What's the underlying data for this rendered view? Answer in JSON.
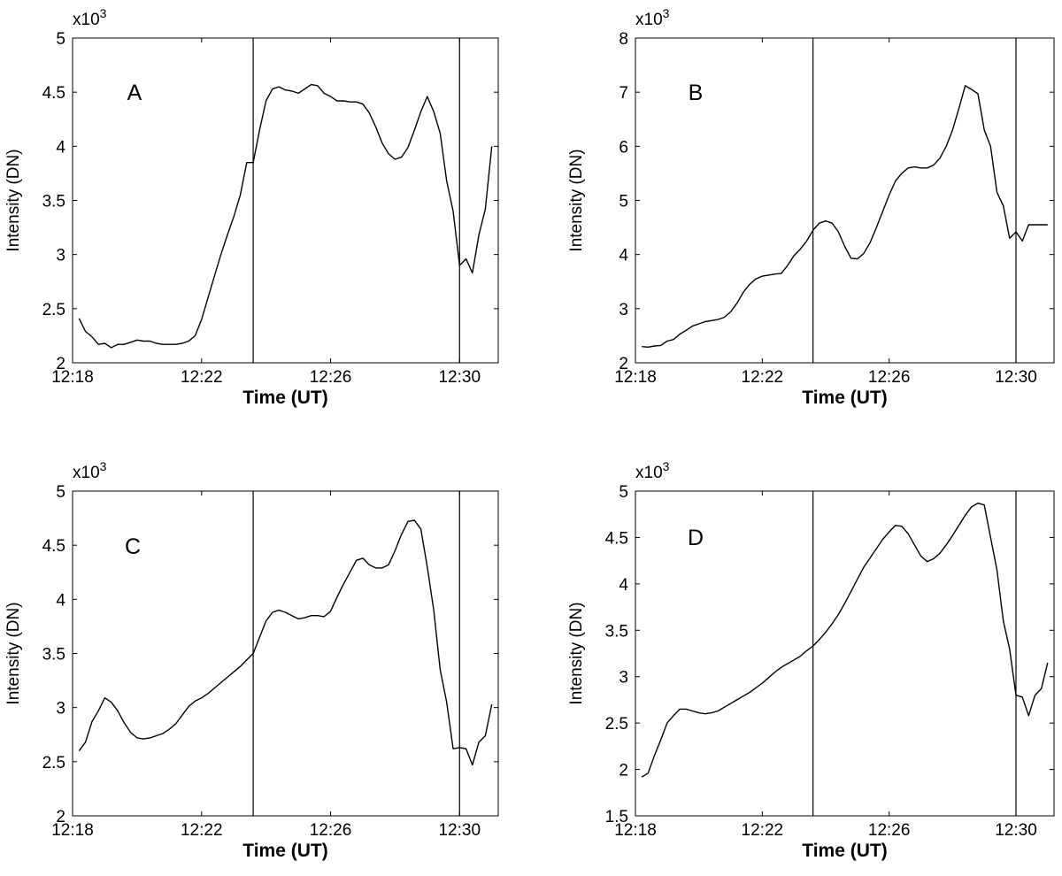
{
  "chart_data": [
    {
      "type": "line",
      "panel_label": "A",
      "xlabel": "Time (UT)",
      "ylabel": "Intensity (DN)",
      "y_multiplier_label": "x10",
      "y_multiplier_exp": "3",
      "xlim": [
        0,
        13.2
      ],
      "ylim": [
        2,
        5
      ],
      "xticks": [
        0,
        4,
        8,
        12
      ],
      "xtick_labels": [
        "12:18",
        "12:22",
        "12:26",
        "12:30"
      ],
      "yticks": [
        2,
        2.5,
        3,
        3.5,
        4,
        4.5,
        5
      ],
      "ytick_labels": [
        "2",
        "2.5",
        "3",
        "3.5",
        "4",
        "4.5",
        "5"
      ],
      "vlines": [
        5.6,
        12.0
      ],
      "series": [
        {
          "name": "A",
          "x": [
            0.2,
            0.4,
            0.6,
            0.8,
            1.0,
            1.2,
            1.4,
            1.6,
            1.8,
            2.0,
            2.2,
            2.4,
            2.6,
            2.8,
            3.0,
            3.2,
            3.4,
            3.6,
            3.8,
            4.0,
            4.2,
            4.4,
            4.6,
            4.8,
            5.0,
            5.2,
            5.4,
            5.6,
            5.8,
            6.0,
            6.2,
            6.4,
            6.6,
            6.8,
            7.0,
            7.2,
            7.4,
            7.6,
            7.8,
            8.0,
            8.2,
            8.4,
            8.6,
            8.8,
            9.0,
            9.2,
            9.4,
            9.6,
            9.8,
            10.0,
            10.2,
            10.4,
            10.6,
            10.8,
            11.0,
            11.2,
            11.4,
            11.6,
            11.8,
            12.0,
            12.2,
            12.4,
            12.6,
            12.8,
            13.0
          ],
          "y": [
            2.41,
            2.29,
            2.24,
            2.17,
            2.18,
            2.14,
            2.17,
            2.17,
            2.19,
            2.21,
            2.2,
            2.2,
            2.18,
            2.17,
            2.17,
            2.17,
            2.18,
            2.2,
            2.25,
            2.4,
            2.6,
            2.8,
            3.0,
            3.18,
            3.35,
            3.55,
            3.85,
            3.85,
            4.15,
            4.42,
            4.53,
            4.55,
            4.52,
            4.51,
            4.49,
            4.53,
            4.57,
            4.56,
            4.49,
            4.46,
            4.42,
            4.42,
            4.41,
            4.41,
            4.39,
            4.31,
            4.18,
            4.03,
            3.93,
            3.88,
            3.9,
            3.99,
            4.15,
            4.32,
            4.46,
            4.32,
            4.12,
            3.68,
            3.4,
            2.9,
            2.96,
            2.83,
            3.18,
            3.42,
            4.0
          ]
        }
      ]
    },
    {
      "type": "line",
      "panel_label": "B",
      "xlabel": "Time (UT)",
      "ylabel": "Intensity (DN)",
      "y_multiplier_label": "x10",
      "y_multiplier_exp": "3",
      "xlim": [
        0,
        13.2
      ],
      "ylim": [
        2,
        8
      ],
      "xticks": [
        0,
        4,
        8,
        12
      ],
      "xtick_labels": [
        "12:18",
        "12:22",
        "12:26",
        "12:30"
      ],
      "yticks": [
        2,
        3,
        4,
        5,
        6,
        7,
        8
      ],
      "ytick_labels": [
        "2",
        "3",
        "4",
        "5",
        "6",
        "7",
        "8"
      ],
      "vlines": [
        5.6,
        12.0
      ],
      "series": [
        {
          "name": "B",
          "x": [
            0.2,
            0.4,
            0.6,
            0.8,
            1.0,
            1.2,
            1.4,
            1.6,
            1.8,
            2.0,
            2.2,
            2.4,
            2.6,
            2.8,
            3.0,
            3.2,
            3.4,
            3.6,
            3.8,
            4.0,
            4.2,
            4.4,
            4.6,
            4.8,
            5.0,
            5.2,
            5.4,
            5.6,
            5.8,
            6.0,
            6.2,
            6.4,
            6.6,
            6.8,
            7.0,
            7.2,
            7.4,
            7.6,
            7.8,
            8.0,
            8.2,
            8.4,
            8.6,
            8.8,
            9.0,
            9.2,
            9.4,
            9.6,
            9.8,
            10.0,
            10.2,
            10.4,
            10.6,
            10.8,
            11.0,
            11.2,
            11.4,
            11.6,
            11.8,
            12.0,
            12.2,
            12.4,
            12.6,
            12.8,
            13.0
          ],
          "y": [
            2.3,
            2.29,
            2.31,
            2.32,
            2.4,
            2.43,
            2.53,
            2.6,
            2.68,
            2.72,
            2.76,
            2.78,
            2.8,
            2.84,
            2.94,
            3.1,
            3.3,
            3.45,
            3.55,
            3.6,
            3.62,
            3.64,
            3.65,
            3.8,
            3.98,
            4.1,
            4.25,
            4.45,
            4.58,
            4.62,
            4.58,
            4.42,
            4.15,
            3.93,
            3.92,
            4.02,
            4.22,
            4.5,
            4.8,
            5.1,
            5.36,
            5.5,
            5.6,
            5.62,
            5.6,
            5.6,
            5.65,
            5.78,
            6.0,
            6.3,
            6.7,
            7.12,
            7.05,
            6.97,
            6.3,
            6.0,
            5.15,
            4.9,
            4.3,
            4.42,
            4.25,
            4.55,
            4.55,
            4.55,
            4.55
          ]
        }
      ]
    },
    {
      "type": "line",
      "panel_label": "C",
      "xlabel": "Time (UT)",
      "ylabel": "Intensity (DN)",
      "y_multiplier_label": "x10",
      "y_multiplier_exp": "3",
      "xlim": [
        0,
        13.2
      ],
      "ylim": [
        2,
        5
      ],
      "xticks": [
        0,
        4,
        8,
        12
      ],
      "xtick_labels": [
        "12:18",
        "12:22",
        "12:26",
        "12:30"
      ],
      "yticks": [
        2,
        2.5,
        3,
        3.5,
        4,
        4.5,
        5
      ],
      "ytick_labels": [
        "2",
        "2.5",
        "3",
        "3.5",
        "4",
        "4.5",
        "5"
      ],
      "vlines": [
        5.6,
        12.0
      ],
      "series": [
        {
          "name": "C",
          "x": [
            0.2,
            0.4,
            0.6,
            0.8,
            1.0,
            1.2,
            1.4,
            1.6,
            1.8,
            2.0,
            2.2,
            2.4,
            2.6,
            2.8,
            3.0,
            3.2,
            3.4,
            3.6,
            3.8,
            4.0,
            4.2,
            4.4,
            4.6,
            4.8,
            5.0,
            5.2,
            5.4,
            5.6,
            5.8,
            6.0,
            6.2,
            6.4,
            6.6,
            6.8,
            7.0,
            7.2,
            7.4,
            7.6,
            7.8,
            8.0,
            8.2,
            8.4,
            8.6,
            8.8,
            9.0,
            9.2,
            9.4,
            9.6,
            9.8,
            10.0,
            10.2,
            10.4,
            10.6,
            10.8,
            11.0,
            11.2,
            11.4,
            11.6,
            11.8,
            12.0,
            12.2,
            12.4,
            12.6,
            12.8,
            13.0
          ],
          "y": [
            2.6,
            2.68,
            2.87,
            2.97,
            3.09,
            3.05,
            2.97,
            2.86,
            2.77,
            2.72,
            2.71,
            2.72,
            2.74,
            2.76,
            2.8,
            2.85,
            2.93,
            3.01,
            3.06,
            3.09,
            3.13,
            3.18,
            3.23,
            3.28,
            3.33,
            3.38,
            3.44,
            3.5,
            3.65,
            3.8,
            3.88,
            3.9,
            3.88,
            3.85,
            3.82,
            3.83,
            3.85,
            3.85,
            3.84,
            3.89,
            4.02,
            4.14,
            4.25,
            4.36,
            4.38,
            4.32,
            4.29,
            4.29,
            4.32,
            4.45,
            4.6,
            4.72,
            4.73,
            4.65,
            4.3,
            3.9,
            3.35,
            3.05,
            2.62,
            2.63,
            2.62,
            2.47,
            2.68,
            2.74,
            3.03
          ]
        }
      ]
    },
    {
      "type": "line",
      "panel_label": "D",
      "xlabel": "Time (UT)",
      "ylabel": "Intensity (DN)",
      "y_multiplier_label": "x10",
      "y_multiplier_exp": "3",
      "xlim": [
        0,
        13.2
      ],
      "ylim": [
        1.5,
        5
      ],
      "xticks": [
        0,
        4,
        8,
        12
      ],
      "xtick_labels": [
        "12:18",
        "12:22",
        "12:26",
        "12:30"
      ],
      "yticks": [
        1.5,
        2,
        2.5,
        3,
        3.5,
        4,
        4.5,
        5
      ],
      "ytick_labels": [
        "1.5",
        "2",
        "2.5",
        "3",
        "3.5",
        "4",
        "4.5",
        "5"
      ],
      "vlines": [
        5.6,
        12.0
      ],
      "series": [
        {
          "name": "D",
          "x": [
            0.2,
            0.4,
            0.6,
            0.8,
            1.0,
            1.2,
            1.4,
            1.6,
            1.8,
            2.0,
            2.2,
            2.4,
            2.6,
            2.8,
            3.0,
            3.2,
            3.4,
            3.6,
            3.8,
            4.0,
            4.2,
            4.4,
            4.6,
            4.8,
            5.0,
            5.2,
            5.4,
            5.6,
            5.8,
            6.0,
            6.2,
            6.4,
            6.6,
            6.8,
            7.0,
            7.2,
            7.4,
            7.6,
            7.8,
            8.0,
            8.2,
            8.4,
            8.6,
            8.8,
            9.0,
            9.2,
            9.4,
            9.6,
            9.8,
            10.0,
            10.2,
            10.4,
            10.6,
            10.8,
            11.0,
            11.2,
            11.4,
            11.6,
            11.8,
            12.0,
            12.2,
            12.4,
            12.6,
            12.8,
            13.0
          ],
          "y": [
            1.92,
            1.96,
            2.15,
            2.32,
            2.5,
            2.58,
            2.65,
            2.65,
            2.63,
            2.61,
            2.6,
            2.61,
            2.63,
            2.67,
            2.71,
            2.75,
            2.79,
            2.83,
            2.88,
            2.93,
            2.99,
            3.05,
            3.1,
            3.14,
            3.18,
            3.22,
            3.28,
            3.33,
            3.4,
            3.48,
            3.57,
            3.67,
            3.79,
            3.92,
            4.05,
            4.18,
            4.28,
            4.38,
            4.48,
            4.56,
            4.63,
            4.62,
            4.54,
            4.42,
            4.3,
            4.24,
            4.27,
            4.33,
            4.42,
            4.52,
            4.63,
            4.74,
            4.83,
            4.87,
            4.85,
            4.5,
            4.15,
            3.6,
            3.3,
            2.8,
            2.78,
            2.58,
            2.8,
            2.87,
            3.15
          ]
        }
      ]
    }
  ]
}
